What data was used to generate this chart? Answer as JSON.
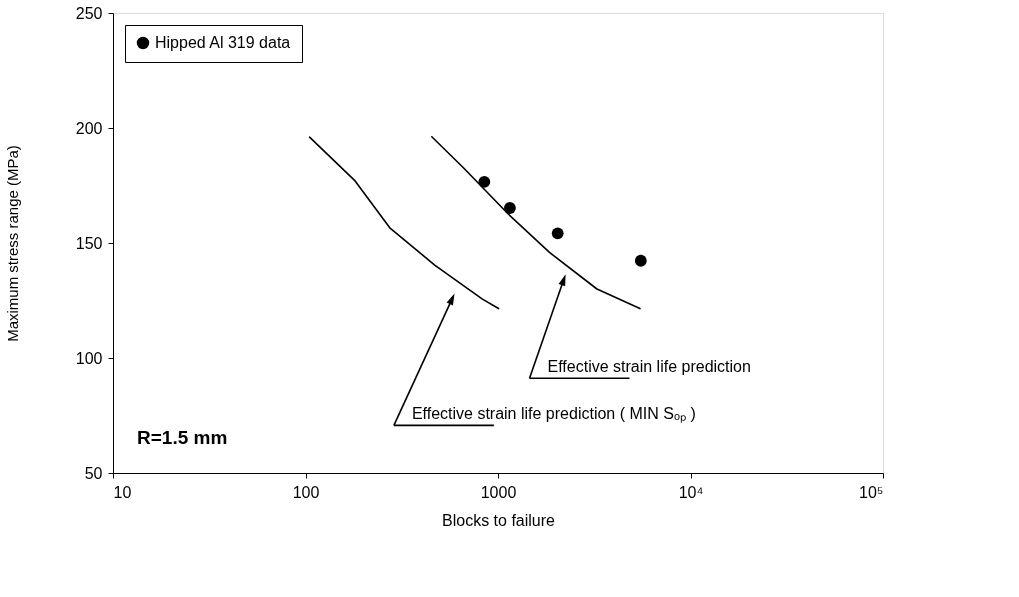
{
  "chart_data": {
    "type": "line",
    "xlabel": "Blocks to failure",
    "ylabel": "Maximum stress range (MPa)",
    "log": "x",
    "grid": false,
    "legend": "top left",
    "xlim": [
      10,
      100000
    ],
    "ylim": [
      50,
      250
    ],
    "xticks": [
      10,
      100,
      1000,
      {
        "value": 10000,
        "label": "10⁴"
      },
      {
        "value": 100000,
        "label": "10⁵"
      }
    ],
    "yticks": [
      50,
      100,
      150,
      200,
      250
    ],
    "series": [
      {
        "name": "Hipped Al 319 data",
        "type": "scatter",
        "marker": "circle",
        "color": "#000000",
        "x": [
          849,
          1153,
          2042,
          5520
        ],
        "values": [
          176.6,
          165.2,
          154.2,
          142.3
        ]
      },
      {
        "color": "#000000",
        "line_style": "solid",
        "x": [
          453,
          661,
          1130,
          1845,
          3266,
          5460
        ],
        "values": [
          196.2,
          182.7,
          162.6,
          146,
          130,
          121.5
        ]
      },
      {
        "color": "#000000",
        "line_style": "solid",
        "x": [
          105,
          181,
          274,
          469,
          830,
          1007
        ],
        "values": [
          196,
          177,
          156.6,
          140.4,
          125.6,
          121.5
        ]
      }
    ],
    "annotations": [
      "Effective strain life prediction",
      "Effective strain life prediction ( MIN Sₒₚ )",
      "R=1.5 mm"
    ]
  }
}
